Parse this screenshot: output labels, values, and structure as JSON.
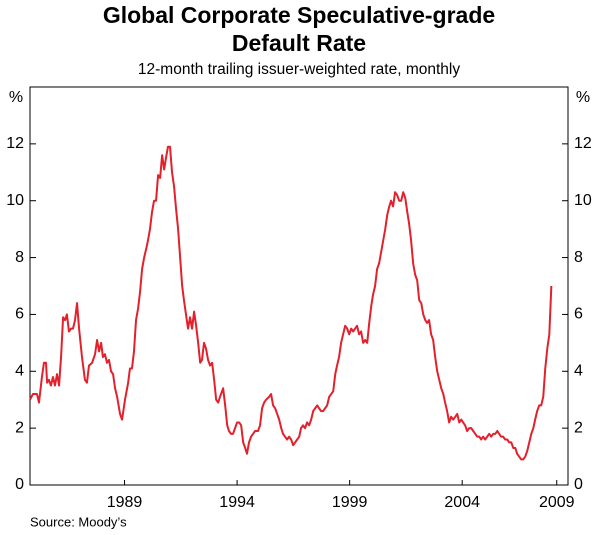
{
  "chart_data": {
    "type": "line",
    "title": [
      "Global Corporate Speculative-grade",
      "Default Rate"
    ],
    "subtitle": "12-month trailing issuer-weighted rate, monthly",
    "y_label": "%",
    "source": "Source: Moody’s",
    "xlim": [
      1985.3,
      2009.2
    ],
    "xticks": [
      {
        "value": 1989.5,
        "label": "1989"
      },
      {
        "value": 1994.5,
        "label": "1994"
      },
      {
        "value": 1999.5,
        "label": "1999"
      },
      {
        "value": 2004.5,
        "label": "2004"
      },
      {
        "value": 2008.7,
        "label": "2009"
      }
    ],
    "ylim": [
      0,
      14
    ],
    "yticks": [
      0,
      2,
      4,
      6,
      8,
      10,
      12
    ],
    "series": [
      {
        "color": "#e3202b",
        "x": [
          1985.3,
          1985.43,
          1985.61,
          1985.7,
          1985.83,
          1985.92,
          1986.01,
          1986.06,
          1986.14,
          1986.23,
          1986.32,
          1986.41,
          1986.5,
          1986.59,
          1986.68,
          1986.77,
          1986.86,
          1986.94,
          1987.03,
          1987.12,
          1987.21,
          1987.3,
          1987.39,
          1987.48,
          1987.61,
          1987.74,
          1987.83,
          1987.92,
          1988.06,
          1988.19,
          1988.28,
          1988.37,
          1988.46,
          1988.54,
          1988.63,
          1988.72,
          1988.81,
          1988.9,
          1988.99,
          1989.08,
          1989.17,
          1989.3,
          1989.39,
          1989.52,
          1989.66,
          1989.74,
          1989.83,
          1989.92,
          1990.01,
          1990.1,
          1990.19,
          1990.28,
          1990.37,
          1990.46,
          1990.54,
          1990.63,
          1990.72,
          1990.81,
          1990.9,
          1990.99,
          1991.08,
          1991.17,
          1991.26,
          1991.34,
          1991.43,
          1991.52,
          1991.61,
          1991.7,
          1991.79,
          1991.88,
          1991.97,
          1992.06,
          1992.14,
          1992.23,
          1992.32,
          1992.41,
          1992.5,
          1992.59,
          1992.68,
          1992.77,
          1992.86,
          1992.94,
          1993.03,
          1993.12,
          1993.21,
          1993.3,
          1993.39,
          1993.48,
          1993.57,
          1993.66,
          1993.74,
          1993.88,
          1993.97,
          1994.06,
          1994.14,
          1994.23,
          1994.32,
          1994.41,
          1994.5,
          1994.59,
          1994.68,
          1994.77,
          1994.86,
          1994.94,
          1995.03,
          1995.12,
          1995.21,
          1995.3,
          1995.43,
          1995.52,
          1995.61,
          1995.7,
          1995.79,
          1995.92,
          1996.01,
          1996.1,
          1996.19,
          1996.28,
          1996.37,
          1996.46,
          1996.54,
          1996.63,
          1996.72,
          1996.81,
          1996.9,
          1996.99,
          1997.08,
          1997.17,
          1997.26,
          1997.34,
          1997.43,
          1997.52,
          1997.61,
          1997.7,
          1997.79,
          1997.88,
          1997.97,
          1998.06,
          1998.14,
          1998.23,
          1998.32,
          1998.41,
          1998.5,
          1998.59,
          1998.68,
          1998.77,
          1998.86,
          1998.94,
          1999.03,
          1999.12,
          1999.21,
          1999.3,
          1999.39,
          1999.48,
          1999.57,
          1999.66,
          1999.74,
          1999.83,
          1999.92,
          2000.01,
          2000.1,
          2000.19,
          2000.28,
          2000.37,
          2000.46,
          2000.54,
          2000.63,
          2000.72,
          2000.81,
          2000.9,
          2000.99,
          2001.08,
          2001.17,
          2001.26,
          2001.34,
          2001.43,
          2001.52,
          2001.61,
          2001.7,
          2001.79,
          2001.88,
          2001.97,
          2002.06,
          2002.14,
          2002.23,
          2002.32,
          2002.41,
          2002.5,
          2002.59,
          2002.68,
          2002.77,
          2002.86,
          2002.94,
          2003.03,
          2003.12,
          2003.21,
          2003.3,
          2003.39,
          2003.48,
          2003.57,
          2003.66,
          2003.74,
          2003.83,
          2003.92,
          2004.01,
          2004.1,
          2004.19,
          2004.28,
          2004.37,
          2004.46,
          2004.54,
          2004.63,
          2004.72,
          2004.81,
          2004.9,
          2004.99,
          2005.08,
          2005.17,
          2005.26,
          2005.34,
          2005.43,
          2005.52,
          2005.61,
          2005.7,
          2005.79,
          2005.88,
          2005.97,
          2006.06,
          2006.14,
          2006.23,
          2006.32,
          2006.41,
          2006.5,
          2006.59,
          2006.68,
          2006.77,
          2006.86,
          2006.94,
          2007.03,
          2007.12,
          2007.21,
          2007.3,
          2007.39,
          2007.48,
          2007.57,
          2007.66,
          2007.74,
          2007.83,
          2007.92,
          2008.01,
          2008.1,
          2008.19,
          2008.28,
          2008.37,
          2008.46
        ],
        "values": [
          3.0,
          3.2,
          3.2,
          2.9,
          3.8,
          4.3,
          4.3,
          3.6,
          3.7,
          3.5,
          3.8,
          3.5,
          3.9,
          3.5,
          4.5,
          5.9,
          5.8,
          6.0,
          5.4,
          5.5,
          5.5,
          5.8,
          6.4,
          5.5,
          4.5,
          3.7,
          3.6,
          4.2,
          4.3,
          4.6,
          5.1,
          4.7,
          5.0,
          4.5,
          4.6,
          4.3,
          4.4,
          4.0,
          3.9,
          3.4,
          3.1,
          2.5,
          2.3,
          3.0,
          3.6,
          4.1,
          4.1,
          4.7,
          5.8,
          6.2,
          6.8,
          7.6,
          8.0,
          8.3,
          8.6,
          9.0,
          9.6,
          10.0,
          10.0,
          10.9,
          10.8,
          11.6,
          11.1,
          11.5,
          11.9,
          11.9,
          11.0,
          10.5,
          9.7,
          9.0,
          8.0,
          7.0,
          6.5,
          6.0,
          5.5,
          5.9,
          5.5,
          6.1,
          5.6,
          5.0,
          4.3,
          4.4,
          5.0,
          4.8,
          4.4,
          4.2,
          4.3,
          3.7,
          3.0,
          2.9,
          3.1,
          3.4,
          2.8,
          2.1,
          1.9,
          1.8,
          1.8,
          2.0,
          2.2,
          2.2,
          2.1,
          1.5,
          1.3,
          1.1,
          1.5,
          1.7,
          1.8,
          1.9,
          1.9,
          2.1,
          2.7,
          2.9,
          3.0,
          3.1,
          3.2,
          2.8,
          2.7,
          2.5,
          2.3,
          2.0,
          1.8,
          1.7,
          1.6,
          1.7,
          1.6,
          1.4,
          1.5,
          1.6,
          1.7,
          2.0,
          2.1,
          2.0,
          2.2,
          2.1,
          2.3,
          2.6,
          2.7,
          2.8,
          2.7,
          2.6,
          2.6,
          2.7,
          2.8,
          3.1,
          3.2,
          3.3,
          3.9,
          4.2,
          4.5,
          5.0,
          5.3,
          5.6,
          5.5,
          5.3,
          5.5,
          5.4,
          5.5,
          5.6,
          5.3,
          5.4,
          5.0,
          5.1,
          5.0,
          5.7,
          6.3,
          6.7,
          7.0,
          7.6,
          7.8,
          8.2,
          8.6,
          9.0,
          9.5,
          9.8,
          10.0,
          9.8,
          10.3,
          10.2,
          10.0,
          10.0,
          10.3,
          10.1,
          9.6,
          9.2,
          8.6,
          7.8,
          7.4,
          7.2,
          6.5,
          6.4,
          6.0,
          5.8,
          5.7,
          5.8,
          5.3,
          5.1,
          4.5,
          4.0,
          3.7,
          3.4,
          3.2,
          2.9,
          2.6,
          2.2,
          2.4,
          2.3,
          2.4,
          2.5,
          2.2,
          2.3,
          2.2,
          2.1,
          1.9,
          2.0,
          2.0,
          1.9,
          1.8,
          1.7,
          1.7,
          1.6,
          1.7,
          1.6,
          1.7,
          1.8,
          1.7,
          1.8,
          1.8,
          1.9,
          1.8,
          1.7,
          1.7,
          1.6,
          1.6,
          1.5,
          1.5,
          1.3,
          1.3,
          1.1,
          1.0,
          0.9,
          0.9,
          1.0,
          1.2,
          1.5,
          1.8,
          2.0,
          2.3,
          2.6,
          2.8,
          2.8,
          3.1,
          4.1,
          4.8,
          5.3,
          7.0
        ]
      }
    ]
  }
}
